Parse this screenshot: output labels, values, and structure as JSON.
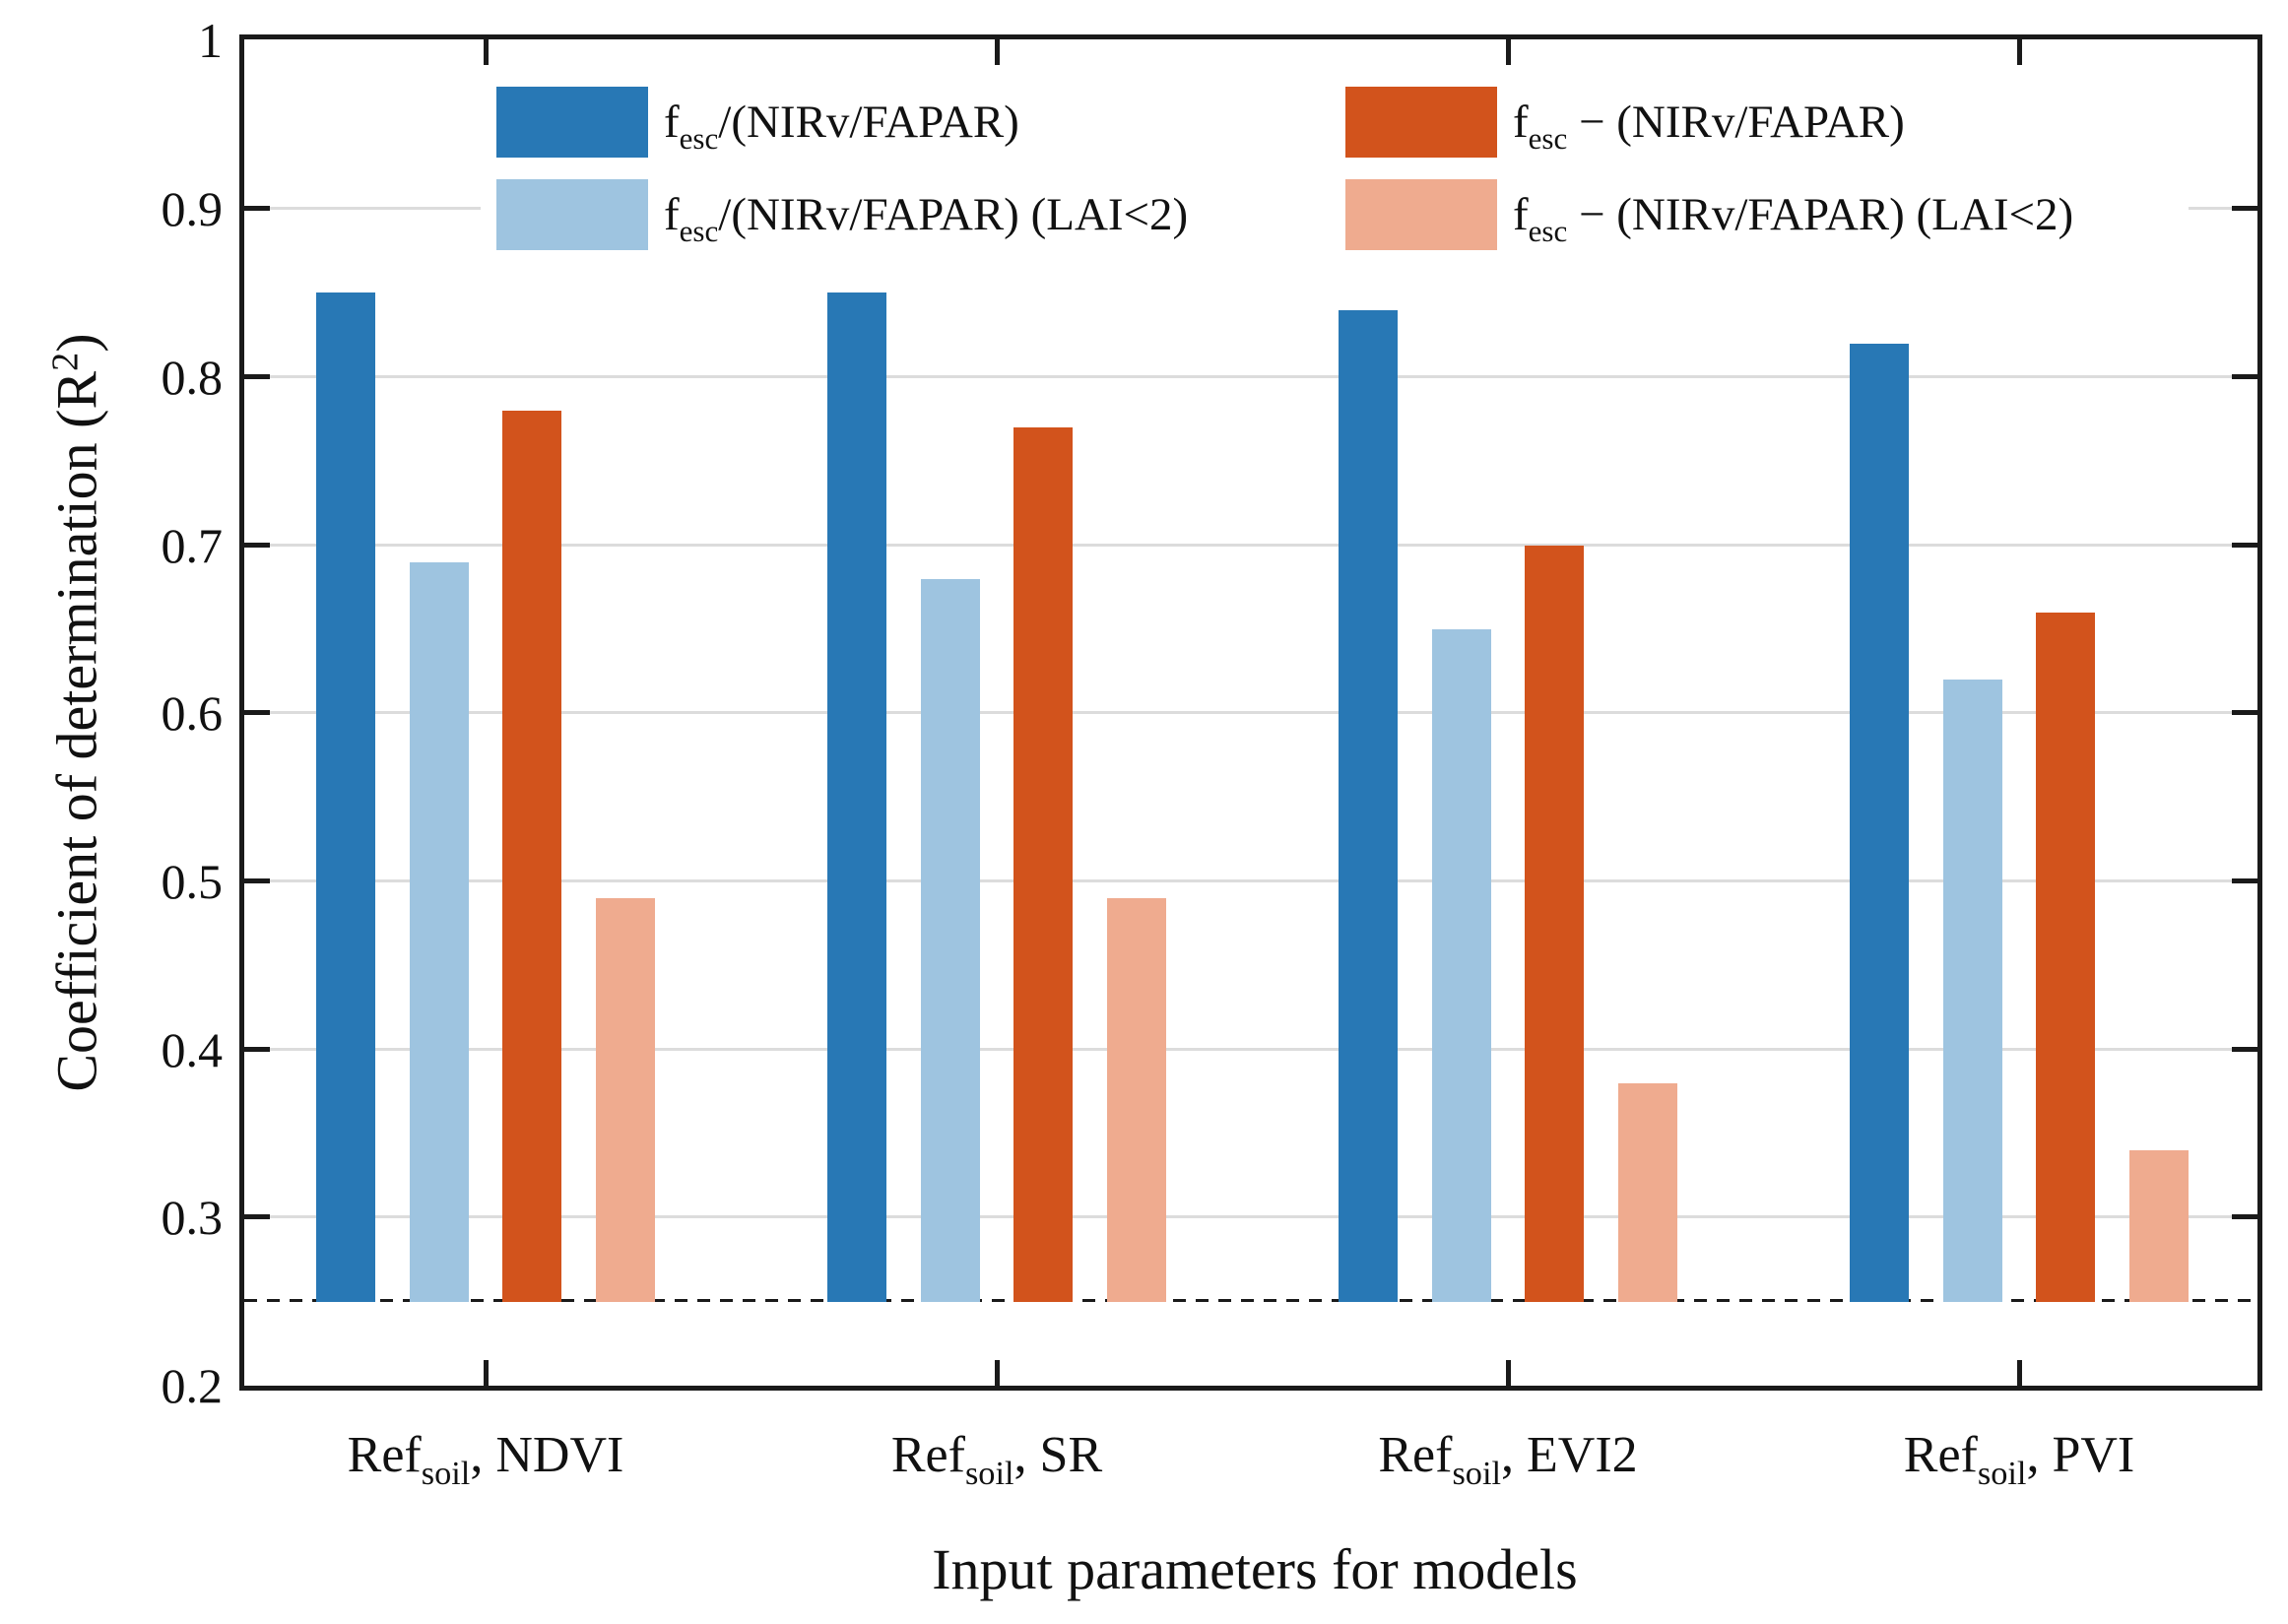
{
  "figure": {
    "y_axis_title": {
      "pre": "Coefficient of determination (R",
      "sup": "2",
      "post": ")"
    },
    "x_axis_title": "Input parameters for models",
    "background": "#ffffff"
  },
  "axis": {
    "ylim": [
      0.2,
      1.0
    ],
    "y_ticks": [
      {
        "label": "1",
        "value": 1.0
      },
      {
        "label": "0.9",
        "value": 0.9
      },
      {
        "label": "0.8",
        "value": 0.8
      },
      {
        "label": "0.7",
        "value": 0.7
      },
      {
        "label": "0.6",
        "value": 0.6
      },
      {
        "label": "0.5",
        "value": 0.5
      },
      {
        "label": "0.4",
        "value": 0.4
      },
      {
        "label": "0.3",
        "value": 0.3
      },
      {
        "label": "0.2",
        "value": 0.2
      }
    ],
    "grid_values": [
      0.3,
      0.4,
      0.5,
      0.6,
      0.7,
      0.8,
      0.9
    ],
    "reference_line_value": 0.25,
    "bar_base_value": 0.25,
    "axis_color": "#1a1a1a",
    "grid_color": "#dcdcdc"
  },
  "categories": [
    {
      "pre": "Ref",
      "sub": "soil",
      "post": ", NDVI"
    },
    {
      "pre": "Ref",
      "sub": "soil",
      "post": ", SR"
    },
    {
      "pre": "Ref",
      "sub": "soil",
      "post": ", EVI2"
    },
    {
      "pre": "Ref",
      "sub": "soil",
      "post": ", PVI"
    }
  ],
  "legend": {
    "items": [
      {
        "f": "f",
        "sub": "esc",
        "rest": "/(NIRv/FAPAR)",
        "color": "#2878B5"
      },
      {
        "f": "f",
        "sub": "esc",
        "rest": "/(NIRv/FAPAR) (LAI<2)",
        "color": "#9EC4E0"
      },
      {
        "f": "f",
        "sub": "esc",
        "rest": " − (NIRv/FAPAR)",
        "color": "#D2531C"
      },
      {
        "f": "f",
        "sub": "esc",
        "rest": " − (NIRv/FAPAR) (LAI<2)",
        "color": "#EFAB8F"
      }
    ]
  },
  "chart_data": {
    "type": "bar",
    "categories": [
      "Ref_soil, NDVI",
      "Ref_soil, SR",
      "Ref_soil, EVI2",
      "Ref_soil, PVI"
    ],
    "series": [
      {
        "name": "f_esc/(NIRv/FAPAR)",
        "color": "#2878B5",
        "values": [
          0.85,
          0.85,
          0.84,
          0.82
        ]
      },
      {
        "name": "f_esc/(NIRv/FAPAR) (LAI<2)",
        "color": "#9EC4E0",
        "values": [
          0.69,
          0.68,
          0.65,
          0.62
        ]
      },
      {
        "name": "f_esc − (NIRv/FAPAR)",
        "color": "#D2531C",
        "values": [
          0.78,
          0.77,
          0.7,
          0.66
        ]
      },
      {
        "name": "f_esc − (NIRv/FAPAR) (LAI<2)",
        "color": "#EFAB8F",
        "values": [
          0.49,
          0.49,
          0.38,
          0.34
        ]
      }
    ],
    "title": "",
    "xlabel": "Input parameters for models",
    "ylabel": "Coefficient of determination (R^2)",
    "ylim": [
      0.2,
      1.0
    ],
    "bar_base": 0.25,
    "reference_line": 0.25,
    "grid": "horizontal",
    "legend_position": "top-inside-two-columns-white-background"
  }
}
